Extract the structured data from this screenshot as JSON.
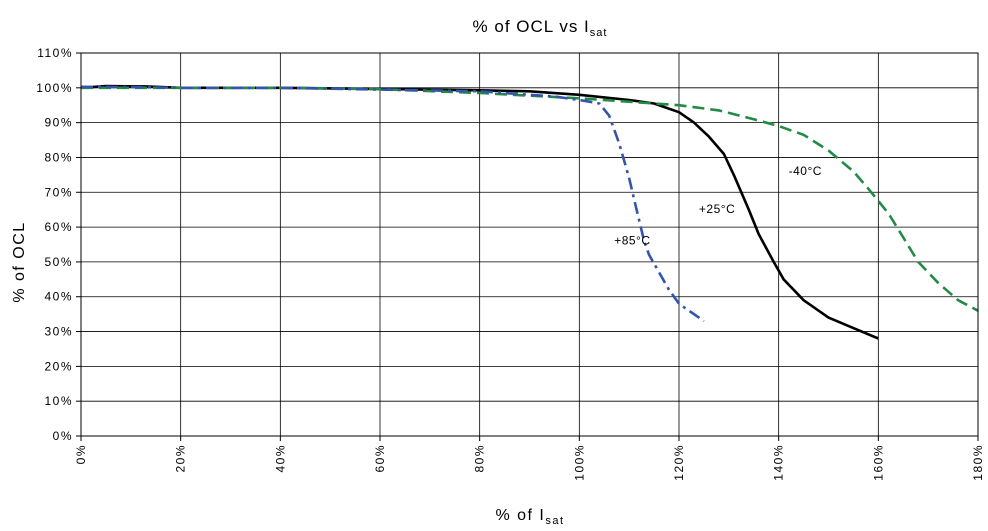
{
  "chart_data": {
    "type": "line",
    "title": {
      "main": "% of OCL vs I",
      "sub": "sat"
    },
    "xlabel": {
      "main": "% of I",
      "sub": "sat"
    },
    "ylabel": "% of OCL",
    "xlim": [
      0,
      180
    ],
    "ylim": [
      0,
      110
    ],
    "x_ticks": [
      "0%",
      "20%",
      "40%",
      "60%",
      "80%",
      "100%",
      "120%",
      "140%",
      "160%",
      "180%"
    ],
    "y_ticks": [
      "0%",
      "10%",
      "20%",
      "30%",
      "40%",
      "50%",
      "60%",
      "70%",
      "80%",
      "90%",
      "100%",
      "110%"
    ],
    "grid": true,
    "series": [
      {
        "name": "+25°C",
        "color": "#000000",
        "dash": "solid",
        "points": [
          [
            0,
            100
          ],
          [
            5,
            100.5
          ],
          [
            13,
            100.4
          ],
          [
            20,
            100
          ],
          [
            40,
            100
          ],
          [
            60,
            99.7
          ],
          [
            80,
            99.3
          ],
          [
            90,
            99
          ],
          [
            100,
            98
          ],
          [
            110,
            96.5
          ],
          [
            115,
            95.5
          ],
          [
            120,
            93
          ],
          [
            123,
            90
          ],
          [
            126,
            86
          ],
          [
            129,
            81
          ],
          [
            131,
            75
          ],
          [
            134,
            65
          ],
          [
            136,
            58
          ],
          [
            139,
            50
          ],
          [
            141,
            45
          ],
          [
            145,
            39
          ],
          [
            150,
            34
          ],
          [
            155,
            31
          ],
          [
            160,
            28
          ]
        ]
      },
      {
        "name": "-40°C",
        "color": "#228B45",
        "dash": "dashed",
        "points": [
          [
            0,
            100
          ],
          [
            20,
            100
          ],
          [
            40,
            100
          ],
          [
            60,
            99.6
          ],
          [
            80,
            98.5
          ],
          [
            100,
            97
          ],
          [
            120,
            95
          ],
          [
            128,
            93.5
          ],
          [
            135,
            91
          ],
          [
            140,
            89
          ],
          [
            145,
            86.5
          ],
          [
            150,
            82
          ],
          [
            155,
            76
          ],
          [
            158,
            71
          ],
          [
            162,
            64
          ],
          [
            165,
            57
          ],
          [
            168,
            50
          ],
          [
            172,
            44
          ],
          [
            176,
            39
          ],
          [
            180,
            36
          ]
        ]
      },
      {
        "name": "+85°C",
        "color": "#3355AA",
        "dash": "dashdot",
        "points": [
          [
            0,
            100.3
          ],
          [
            10,
            100.2
          ],
          [
            20,
            100
          ],
          [
            40,
            100
          ],
          [
            60,
            99.5
          ],
          [
            80,
            99
          ],
          [
            95,
            97.5
          ],
          [
            100,
            96.5
          ],
          [
            104,
            95.5
          ],
          [
            106,
            92
          ],
          [
            108,
            84
          ],
          [
            110,
            74
          ],
          [
            111,
            68
          ],
          [
            112,
            62
          ],
          [
            113,
            56
          ],
          [
            114,
            52
          ],
          [
            116,
            47
          ],
          [
            118,
            42
          ],
          [
            120,
            38
          ],
          [
            122,
            36
          ],
          [
            124,
            34
          ],
          [
            125,
            33
          ]
        ]
      }
    ],
    "annotations": [
      {
        "text": "+85°C",
        "x": 107,
        "y": 55
      },
      {
        "text": "+25°C",
        "x": 124,
        "y": 64
      },
      {
        "text": "-40°C",
        "x": 142,
        "y": 75
      }
    ]
  }
}
